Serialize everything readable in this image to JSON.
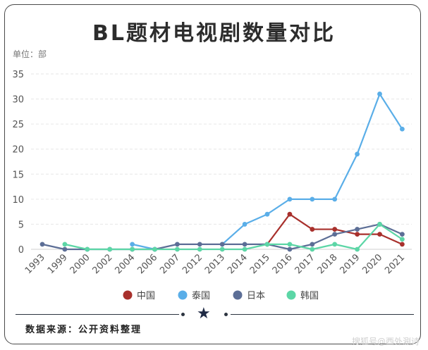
{
  "chart_data": {
    "type": "line",
    "title": "BL题材电视剧数量对比",
    "unit_label": "单位：部",
    "categories": [
      "1993",
      "1999",
      "2000",
      "2002",
      "2004",
      "2006",
      "2007",
      "2012",
      "2013",
      "2014",
      "2015",
      "2016",
      "2017",
      "2018",
      "2019",
      "2020",
      "2021"
    ],
    "ylim": [
      0,
      35
    ],
    "yticks": [
      0,
      5,
      10,
      15,
      20,
      25,
      30,
      35
    ],
    "grid": true,
    "legend_position": "bottom",
    "series": [
      {
        "name": "中国",
        "color": "#a8302c",
        "values": [
          null,
          null,
          null,
          null,
          null,
          null,
          null,
          null,
          null,
          null,
          1,
          7,
          4,
          4,
          3,
          3,
          1
        ]
      },
      {
        "name": "泰国",
        "color": "#5aaee8",
        "values": [
          null,
          null,
          null,
          null,
          1,
          0,
          null,
          null,
          1,
          5,
          7,
          10,
          10,
          10,
          19,
          31,
          24
        ]
      },
      {
        "name": "日本",
        "color": "#5c6e96",
        "values": [
          1,
          0,
          0,
          0,
          0,
          0,
          1,
          1,
          1,
          1,
          1,
          0,
          1,
          3,
          4,
          5,
          3
        ]
      },
      {
        "name": "韩国",
        "color": "#5cd6a6",
        "values": [
          null,
          1,
          0,
          0,
          0,
          0,
          0,
          0,
          0,
          0,
          1,
          1,
          0,
          1,
          0,
          5,
          2
        ]
      }
    ]
  },
  "footer": {
    "source": "数据来源：公开资料整理",
    "watermark": "搜狐号@西外涮诗"
  }
}
